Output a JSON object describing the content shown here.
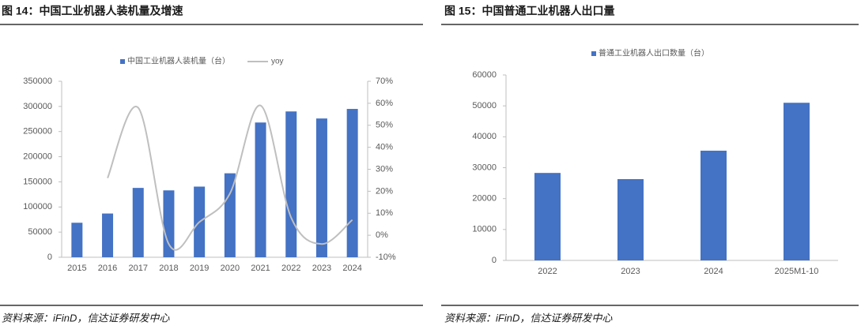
{
  "chart_data": [
    {
      "type": "combo",
      "title": "图 14：中国工业机器人装机量及增速",
      "source": "资料来源：iFinD，信达证券研发中心",
      "categories": [
        "2015",
        "2016",
        "2017",
        "2018",
        "2019",
        "2020",
        "2021",
        "2022",
        "2023",
        "2024"
      ],
      "series": [
        {
          "name": "中国工业机器人装机量（台）",
          "color": "#4472c4",
          "values": [
            68600,
            87000,
            137900,
            133000,
            140500,
            167000,
            268000,
            290000,
            276000,
            295000
          ]
        },
        {
          "name": "yoy",
          "color": "#bfbfbf",
          "axis": "y2",
          "values": [
            null,
            26,
            58,
            -4,
            6,
            19,
            59,
            8,
            -4,
            7
          ]
        }
      ],
      "ylim": [
        0,
        350000
      ],
      "yticks": [
        0,
        50000,
        100000,
        150000,
        200000,
        250000,
        300000,
        350000
      ],
      "y2lim": [
        -10,
        70
      ],
      "y2ticks": [
        {
          "value": -10,
          "label": "-10%"
        },
        {
          "value": 0,
          "label": "0%"
        },
        {
          "value": 10,
          "label": "10%"
        },
        {
          "value": 20,
          "label": "20%"
        },
        {
          "value": 30,
          "label": "30%"
        },
        {
          "value": 40,
          "label": "40%"
        },
        {
          "value": 50,
          "label": "50%"
        },
        {
          "value": 60,
          "label": "60%"
        },
        {
          "value": 70,
          "label": "70%"
        }
      ]
    },
    {
      "type": "bar",
      "title": "图 15：中国普通工业机器人出口量",
      "source": "资料来源：iFinD，信达证券研发中心",
      "categories": [
        "2022",
        "2023",
        "2024",
        "2025M1-10"
      ],
      "series": [
        {
          "name": "普通工业机器人出口数量（台）",
          "color": "#4472c4",
          "values": [
            28300,
            26300,
            35500,
            51000
          ]
        }
      ],
      "ylim": [
        0,
        60000
      ],
      "yticks": [
        0,
        10000,
        20000,
        30000,
        40000,
        50000,
        60000
      ]
    }
  ]
}
